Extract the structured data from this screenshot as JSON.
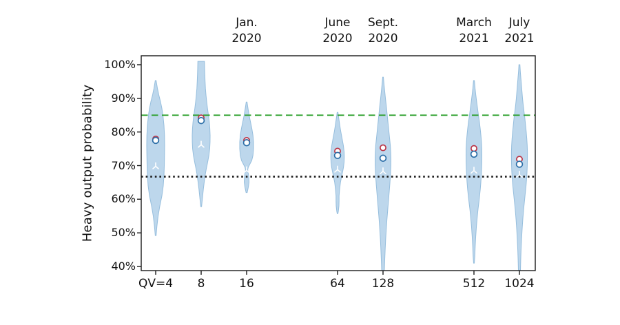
{
  "chart_data": {
    "type": "violin",
    "title": "",
    "xlabel": "",
    "ylabel": "Heavy output probability",
    "ylim": [
      40,
      100
    ],
    "grid": false,
    "legend": "none",
    "y_ticks": [
      {
        "value": 100,
        "label": "100%"
      },
      {
        "value": 90,
        "label": "90%"
      },
      {
        "value": 80,
        "label": "80%"
      },
      {
        "value": 70,
        "label": "70%"
      },
      {
        "value": 60,
        "label": "60%"
      },
      {
        "value": 50,
        "label": "50%"
      },
      {
        "value": 40,
        "label": "40%"
      }
    ],
    "x_ticks": [
      {
        "slot": 0,
        "label": "QV=4"
      },
      {
        "slot": 1,
        "label": "8"
      },
      {
        "slot": 2,
        "label": "16"
      },
      {
        "slot": 4,
        "label": "64"
      },
      {
        "slot": 5,
        "label": "128"
      },
      {
        "slot": 7,
        "label": "512"
      },
      {
        "slot": 8,
        "label": "1024"
      }
    ],
    "date_labels": [
      {
        "slot": 2,
        "line1": "Jan.",
        "line2": "2020"
      },
      {
        "slot": 4,
        "line1": "June",
        "line2": "2020"
      },
      {
        "slot": 5,
        "line1": "Sept.",
        "line2": "2020"
      },
      {
        "slot": 7,
        "line1": "March",
        "line2": "2021"
      },
      {
        "slot": 8,
        "line1": "July",
        "line2": "2021"
      }
    ],
    "reference_lines": [
      {
        "name": "green-dashed-85pct",
        "value": 85,
        "style": "dashed",
        "color": "#2ca02c"
      },
      {
        "name": "black-dotted-two-thirds",
        "value": 66.7,
        "style": "dotted",
        "color": "#1a1a1a"
      }
    ],
    "colors": {
      "violin_fill": "#bdd7ec",
      "violin_edge": "#96bedd",
      "red_marker": "#bb3345",
      "blue_marker": "#2d6fa8",
      "white_marker": "#ffffff",
      "axis": "#1a1a1a",
      "text": "#111111"
    },
    "violins": [
      {
        "x_label": "QV=4",
        "date": "",
        "slot": 0,
        "range_pct": [
          49.2,
          95.3
        ],
        "markers": {
          "red_circle": 77.9,
          "blue_circle": 77.5,
          "white_tri": 69.8
        },
        "profile": [
          [
            95.3,
            0.6
          ],
          [
            93,
            2.5
          ],
          [
            91,
            4.5
          ],
          [
            89,
            7
          ],
          [
            87,
            9
          ],
          [
            85,
            10.5
          ],
          [
            82,
            12
          ],
          [
            79,
            12.8
          ],
          [
            76,
            13
          ],
          [
            73,
            12.8
          ],
          [
            70,
            12.5
          ],
          [
            67,
            12
          ],
          [
            64,
            11
          ],
          [
            61,
            9
          ],
          [
            58,
            6
          ],
          [
            55,
            3.5
          ],
          [
            52,
            1.8
          ],
          [
            49.2,
            0.6
          ]
        ]
      },
      {
        "x_label": "8",
        "date": "",
        "slot": 1,
        "range_pct": [
          57.8,
          100
        ],
        "markers": {
          "red_circle": 84.2,
          "blue_circle": 83.4,
          "white_tri": 76.2
        },
        "profile": [
          [
            101,
            4.8
          ],
          [
            99,
            5
          ],
          [
            97,
            5.3
          ],
          [
            95,
            5.7
          ],
          [
            93,
            6.2
          ],
          [
            91,
            7
          ],
          [
            89,
            8
          ],
          [
            87,
            9.2
          ],
          [
            85,
            10.6
          ],
          [
            83,
            11.8
          ],
          [
            81,
            12.6
          ],
          [
            79,
            13
          ],
          [
            77,
            12.9
          ],
          [
            75,
            12.4
          ],
          [
            73,
            11.2
          ],
          [
            71,
            9.4
          ],
          [
            69,
            7.4
          ],
          [
            67,
            5.7
          ],
          [
            65,
            4.4
          ],
          [
            63,
            3.2
          ],
          [
            61,
            2.2
          ],
          [
            59,
            1.2
          ],
          [
            57.8,
            0.6
          ]
        ]
      },
      {
        "x_label": "16",
        "date": "Jan. 2020",
        "slot": 2,
        "range_pct": [
          62,
          88.9
        ],
        "markers": {
          "red_circle": 77.5,
          "blue_circle": 76.8,
          "white_tri": 68.6
        },
        "profile": [
          [
            88.9,
            0.6
          ],
          [
            87,
            2
          ],
          [
            85,
            3.6
          ],
          [
            83,
            5.6
          ],
          [
            81,
            7.6
          ],
          [
            79,
            9.2
          ],
          [
            77,
            10
          ],
          [
            75,
            10
          ],
          [
            73,
            9.2
          ],
          [
            71.5,
            7.4
          ],
          [
            70.5,
            4.8
          ],
          [
            69.5,
            2.4
          ],
          [
            68.8,
            1.6
          ],
          [
            68,
            2.2
          ],
          [
            66.5,
            3.3
          ],
          [
            65,
            3.5
          ],
          [
            63.5,
            2.4
          ],
          [
            62,
            0.8
          ]
        ]
      },
      {
        "x_label": "64",
        "date": "June 2020",
        "slot": 4,
        "range_pct": [
          55.7,
          85.8
        ],
        "markers": {
          "red_circle": 74.3,
          "blue_circle": 73.0,
          "white_tri": 68.8
        },
        "profile": [
          [
            85.8,
            0.6
          ],
          [
            84,
            1.8
          ],
          [
            82,
            3.2
          ],
          [
            80,
            4.8
          ],
          [
            78,
            6.6
          ],
          [
            76,
            8.4
          ],
          [
            74,
            9.6
          ],
          [
            72.5,
            9.8
          ],
          [
            71,
            9.5
          ],
          [
            69.5,
            8.6
          ],
          [
            68,
            7.2
          ],
          [
            66.5,
            5.6
          ],
          [
            65,
            4.2
          ],
          [
            63,
            3
          ],
          [
            61,
            2.2
          ],
          [
            59.5,
            2.2
          ],
          [
            58,
            2
          ],
          [
            56.5,
            1.2
          ],
          [
            55.7,
            0.5
          ]
        ]
      },
      {
        "x_label": "128",
        "date": "Sept. 2020",
        "slot": 5,
        "range_pct": [
          40,
          96.3
        ],
        "markers": {
          "red_circle": 75.3,
          "blue_circle": 72.2,
          "white_tri": 68.3
        },
        "profile": [
          [
            96.3,
            0.5
          ],
          [
            94,
            1.5
          ],
          [
            92,
            2.5
          ],
          [
            90,
            3.5
          ],
          [
            88,
            4.6
          ],
          [
            86,
            5.6
          ],
          [
            84,
            6.6
          ],
          [
            82,
            7.6
          ],
          [
            80,
            8.6
          ],
          [
            78,
            9.6
          ],
          [
            76,
            10.6
          ],
          [
            74,
            11.2
          ],
          [
            72,
            11.5
          ],
          [
            70,
            11.4
          ],
          [
            68,
            11
          ],
          [
            66,
            10.4
          ],
          [
            64,
            9.7
          ],
          [
            62,
            8.9
          ],
          [
            60,
            8.1
          ],
          [
            57,
            6.9
          ],
          [
            54,
            5.7
          ],
          [
            51,
            4.7
          ],
          [
            48,
            3.8
          ],
          [
            45,
            3.1
          ],
          [
            42,
            2.5
          ],
          [
            38,
            1.8
          ]
        ]
      },
      {
        "x_label": "512",
        "date": "March 2021",
        "slot": 7,
        "range_pct": [
          41,
          95.3
        ],
        "markers": {
          "red_circle": 75.1,
          "blue_circle": 73.4,
          "white_tri": 68.5
        },
        "profile": [
          [
            95.3,
            0.6
          ],
          [
            93,
            1.6
          ],
          [
            91,
            2.7
          ],
          [
            89,
            3.9
          ],
          [
            87,
            5.2
          ],
          [
            85,
            6.5
          ],
          [
            83,
            7.9
          ],
          [
            81,
            9.1
          ],
          [
            79,
            10.1
          ],
          [
            77,
            10.9
          ],
          [
            75,
            11.4
          ],
          [
            73,
            11.5
          ],
          [
            71,
            11.4
          ],
          [
            69,
            11.1
          ],
          [
            67,
            10.6
          ],
          [
            65,
            10
          ],
          [
            63,
            9.2
          ],
          [
            61,
            8.2
          ],
          [
            59,
            7.1
          ],
          [
            57,
            5.9
          ],
          [
            55,
            4.9
          ],
          [
            52,
            3.6
          ],
          [
            49,
            2.6
          ],
          [
            46,
            1.8
          ],
          [
            43,
            1.2
          ],
          [
            41,
            0.5
          ]
        ]
      },
      {
        "x_label": "1024",
        "date": "July 2021",
        "slot": 8,
        "range_pct": [
          40,
          100
        ],
        "markers": {
          "red_circle": 71.9,
          "blue_circle": 70.4,
          "white_tri": 67.3
        },
        "profile": [
          [
            100,
            0.7
          ],
          [
            98,
            1.3
          ],
          [
            96,
            2.1
          ],
          [
            94,
            2.9
          ],
          [
            92,
            3.7
          ],
          [
            90,
            4.5
          ],
          [
            88,
            5.5
          ],
          [
            86,
            6.7
          ],
          [
            84,
            7.9
          ],
          [
            82,
            8.9
          ],
          [
            80,
            9.9
          ],
          [
            78,
            10.7
          ],
          [
            76,
            11.3
          ],
          [
            74,
            11.6
          ],
          [
            72,
            11.6
          ],
          [
            70,
            11.4
          ],
          [
            68,
            11
          ],
          [
            66,
            10.4
          ],
          [
            64,
            9.6
          ],
          [
            62,
            8.6
          ],
          [
            60,
            7.6
          ],
          [
            57,
            6.1
          ],
          [
            54,
            4.9
          ],
          [
            51,
            3.9
          ],
          [
            48,
            3.1
          ],
          [
            45,
            2.4
          ],
          [
            42,
            1.9
          ],
          [
            38,
            1.4
          ]
        ]
      }
    ]
  }
}
